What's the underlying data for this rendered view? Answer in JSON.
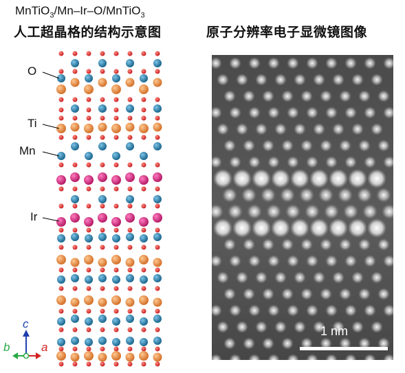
{
  "header": {
    "formula_parts": [
      "MnTiO",
      "3",
      "/Mn–Ir–O/MnTiO",
      "3"
    ],
    "structure_title": "人工超晶格的结构示意图",
    "microscope_title": "原子分辨率电子显微镜图像"
  },
  "labels": {
    "oxygen": "O",
    "titanium": "Ti",
    "manganese": "Mn",
    "iridium": "Ir"
  },
  "axes": {
    "b": "b",
    "c": "c",
    "a": "a"
  },
  "scale_bar": {
    "label": "1 nm"
  },
  "colors": {
    "oxygen": "#d7221f",
    "titanium": "#e58436",
    "manganese": "#1f7aa8",
    "iridium": "#cf1d79",
    "axis_c": "#1f3fae",
    "axis_a": "#d32121",
    "axis_b": "#2aa845"
  }
}
